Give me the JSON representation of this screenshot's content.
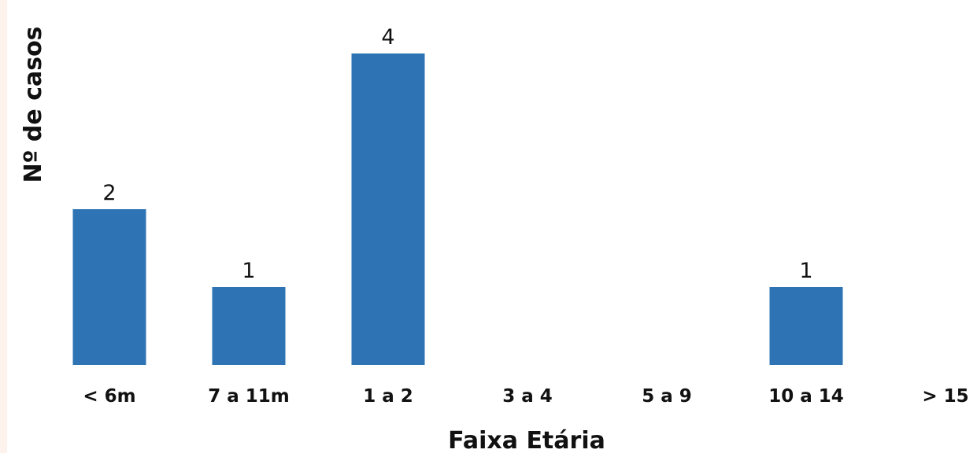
{
  "chart_data": {
    "type": "bar",
    "categories": [
      "< 6m",
      "7 a 11m",
      "1 a 2",
      "3 a 4",
      "5 a 9",
      "10 a 14",
      "> 15"
    ],
    "values": [
      2,
      1,
      4,
      0,
      0,
      1,
      0
    ],
    "data_labels": [
      "2",
      "1",
      "4",
      "",
      "",
      "1",
      ""
    ],
    "xlabel": "Faixa Etária",
    "ylabel": "Nº de casos",
    "ylim": [
      0,
      4
    ],
    "grid": false,
    "bar_color": "#2e74b5"
  }
}
